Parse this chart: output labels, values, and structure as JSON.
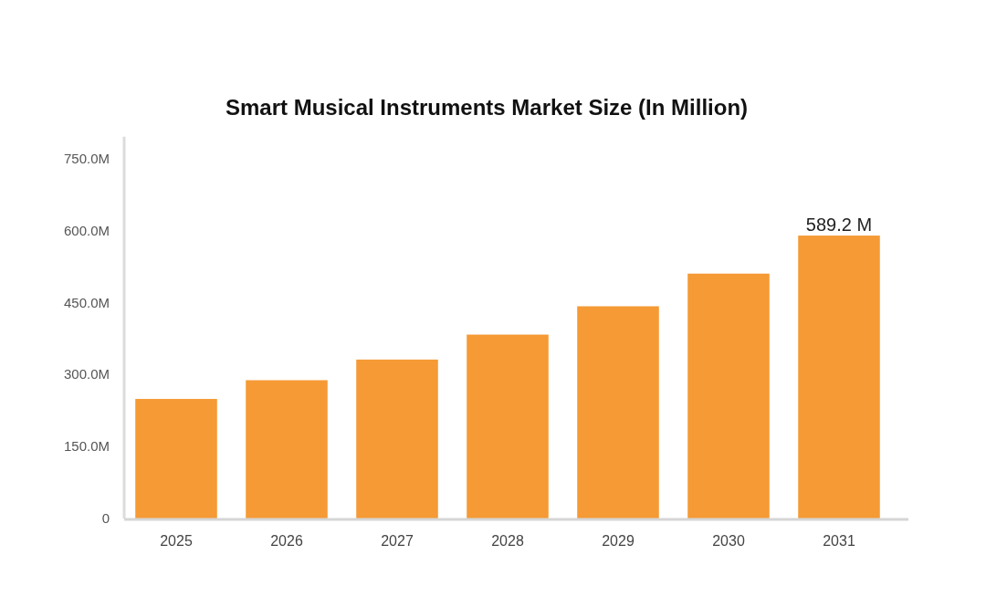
{
  "chart_data": {
    "type": "bar",
    "title": "Smart Musical Instruments Market Size (In Million)",
    "categories": [
      "2025",
      "2026",
      "2027",
      "2028",
      "2029",
      "2030",
      "2031"
    ],
    "values": [
      249,
      288,
      331,
      383,
      442,
      510,
      589.2
    ],
    "color": "#f59a35",
    "value_labels": [
      null,
      null,
      null,
      null,
      null,
      null,
      "589.2 M"
    ],
    "ylim": [
      0,
      795
    ],
    "yticks": [
      0,
      {
        "value": 150,
        "label": "150.0M"
      },
      {
        "value": 300,
        "label": "300.0M"
      },
      {
        "value": 450,
        "label": "450.0M"
      },
      {
        "value": 600,
        "label": "600.0M"
      },
      {
        "value": 750,
        "label": "750.0M"
      }
    ]
  }
}
